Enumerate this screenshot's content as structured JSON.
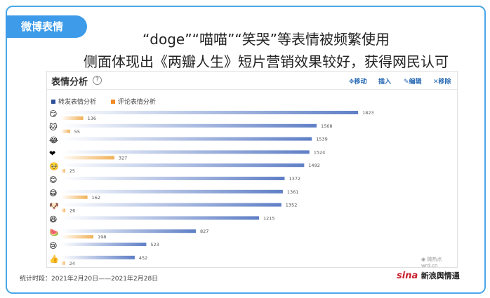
{
  "tag": "微博表情",
  "headline": {
    "line1": "“doge”“喵喵”“笑哭”等表情被频繁使用",
    "line2": "侧面体现出《两瓣人生》短片营销效果较好，获得网民认可"
  },
  "panel": {
    "title": "表情分析",
    "help": "?",
    "tools": {
      "move": "✥移动",
      "insert": "插入",
      "edit": "✎编辑",
      "remove": "✕移除"
    }
  },
  "watermark": "◉ 微热点  wrd.cn",
  "footer": "统计时段：2021年2月20日——2021年2月28日",
  "logo": {
    "sina": "sina",
    "cn": "新浪舆情通"
  },
  "colors": {
    "repost": "#2c4f97",
    "comment": "#f08a24",
    "repost_bar": "#6f8fd0",
    "comment_bar": "#f2b766"
  },
  "chart_data": {
    "type": "bar",
    "orientation": "horizontal",
    "categories": [
      "doge",
      "喵喵",
      "笑哭",
      "心",
      "可怜",
      "嘻嘻",
      "允悲",
      "二哈",
      "哈哈",
      "吃瓜",
      "泪",
      "赞"
    ],
    "emoji_icons": [
      "😏",
      "🐱",
      "😂",
      "❤",
      "🥺",
      "😊",
      "😅",
      "🐶",
      "😆",
      "🍉",
      "😢",
      "👍"
    ],
    "series": [
      {
        "name": "转发表情分析",
        "values": [
          1823,
          1568,
          1539,
          1524,
          1492,
          1372,
          1361,
          1352,
          1215,
          827,
          523,
          452
        ]
      },
      {
        "name": "评论表情分析",
        "values": [
          136,
          55,
          null,
          327,
          25,
          null,
          162,
          26,
          null,
          198,
          null,
          24
        ]
      }
    ],
    "xlim": [
      0,
      1900
    ],
    "legend": "top-left",
    "grid": false
  }
}
